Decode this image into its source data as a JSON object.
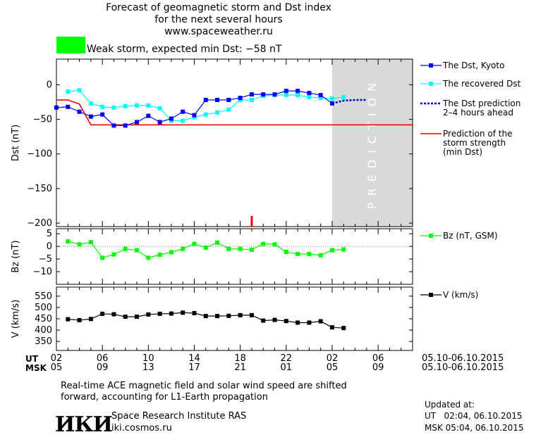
{
  "header": {
    "title_line1": "Forecast of geomagnetic storm and Dst index",
    "title_line2": "for the next several hours",
    "website": "www.spaceweather.ru"
  },
  "storm_label": {
    "text": "Weak storm, expected min Dst: −58 nT",
    "color": "#00ff00"
  },
  "prediction_text": "PREDICTION",
  "footer": {
    "note_line1": "Real-time ACE magnetic field and solar wind speed are shifted",
    "note_line2": "forward, accounting for L1-Earth propagation",
    "logo_text": "ИКИ",
    "institute": "Space Research Institute RAS",
    "institute_site": "iki.cosmos.ru",
    "updated_label": "Updated at:",
    "updated_ut": "UT   02:04, 06.10.2015",
    "updated_msk": "MSK 05:04, 06.10.2015"
  },
  "time_axis": {
    "ut_label": "UT",
    "msk_label": "MSK",
    "ut_ticks": [
      "02",
      "06",
      "10",
      "14",
      "18",
      "22",
      "02",
      "06"
    ],
    "msk_ticks": [
      "05",
      "09",
      "13",
      "17",
      "21",
      "01",
      "05",
      "09"
    ],
    "date_range_ut": "05.10-06.10.2015",
    "date_range_msk": "05.10-06.10.2015"
  },
  "chart_data": [
    {
      "type": "line",
      "ylabel": "Dst (nT)",
      "ylim": [
        -205,
        37
      ],
      "yticks": [
        0,
        -50,
        -100,
        -150,
        -200
      ],
      "x_hours": [
        0,
        1,
        2,
        3,
        4,
        5,
        6,
        7,
        8,
        9,
        10,
        11,
        12,
        13,
        14,
        15,
        16,
        17,
        18,
        19,
        20,
        21,
        22,
        23,
        24
      ],
      "prediction_start_hour": 24,
      "prediction_end_hour": 31,
      "storm_peak_marker_hour": 17,
      "series": [
        {
          "name": "The Dst, Kyoto",
          "color": "#0000ff",
          "values": [
            -33,
            -32,
            -39,
            -46,
            -43,
            -59,
            -59,
            -54,
            -45,
            -54,
            -49,
            -39,
            -44,
            -22,
            -22,
            -22,
            -19,
            -14,
            -14,
            -14,
            -9,
            -9,
            -12,
            -15,
            -27
          ]
        },
        {
          "name": "The recovered Dst",
          "color": "#00ffff",
          "x": [
            1,
            2,
            3,
            4,
            5,
            6,
            7,
            8,
            9,
            10,
            11,
            12,
            13,
            14,
            15,
            16,
            17,
            18,
            19,
            20,
            21,
            22,
            23,
            24,
            25
          ],
          "values": [
            -10,
            -8,
            -27,
            -32,
            -33,
            -31,
            -30,
            -30,
            -34,
            -52,
            -52,
            -47,
            -43,
            -40,
            -36,
            -22,
            -22,
            -16,
            -15,
            -15,
            -15,
            -18,
            -19,
            -20,
            -18
          ]
        },
        {
          "name": "The Dst prediction\n2–4 hours ahead",
          "color": "#0000cc",
          "x": [
            24,
            25,
            26,
            27
          ],
          "values": [
            -27,
            -23,
            -22,
            -22
          ]
        },
        {
          "name": "Prediction of the\nstorm strength\n(min Dst)",
          "color": "#ee0000",
          "x": [
            0,
            1,
            2,
            3,
            31
          ],
          "values": [
            -22,
            -22,
            -28,
            -58,
            -58
          ]
        }
      ]
    },
    {
      "type": "line",
      "ylabel": "Bz (nT)",
      "ylim": [
        -15,
        7
      ],
      "yticks": [
        5,
        0,
        -5,
        -10
      ],
      "series": [
        {
          "name": "Bz (nT, GSM)",
          "color": "#00ff00",
          "x": [
            1,
            2,
            3,
            4,
            5,
            6,
            7,
            8,
            9,
            10,
            11,
            12,
            13,
            14,
            15,
            16,
            17,
            18,
            19,
            20,
            21,
            22,
            23,
            24,
            25
          ],
          "values": [
            2,
            0.8,
            1.7,
            -4.5,
            -3.2,
            -1,
            -1.5,
            -4.5,
            -3.3,
            -2.3,
            -1,
            1,
            -0.5,
            1.5,
            -1,
            -1,
            -1.3,
            1,
            0.8,
            -2.2,
            -3,
            -3,
            -3.5,
            -1.5,
            -1.2
          ]
        }
      ]
    },
    {
      "type": "line",
      "ylabel": "V (km/s)",
      "ylim": [
        310,
        590
      ],
      "yticks": [
        550,
        500,
        450,
        400,
        350
      ],
      "series": [
        {
          "name": "V (km/s)",
          "color": "#000000",
          "x": [
            1,
            2,
            3,
            4,
            5,
            6,
            7,
            8,
            9,
            10,
            11,
            12,
            13,
            14,
            15,
            16,
            17,
            18,
            19,
            20,
            21,
            22,
            23,
            24,
            25
          ],
          "values": [
            448,
            444,
            449,
            472,
            470,
            459,
            459,
            469,
            472,
            473,
            477,
            475,
            462,
            462,
            463,
            466,
            466,
            442,
            445,
            440,
            433,
            433,
            439,
            412,
            409
          ]
        }
      ]
    }
  ]
}
